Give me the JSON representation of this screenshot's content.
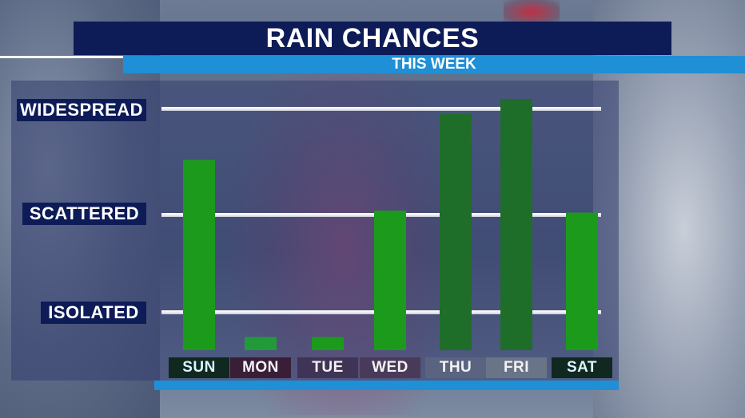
{
  "header": {
    "title": "RAIN CHANCES",
    "subtitle": "THIS WEEK"
  },
  "colors": {
    "title_bar": "#0d1b57",
    "subtitle_bar": "#1f8fd6",
    "bar_light_green": "#1c9a1c",
    "bar_dark_green": "#1e6e2a"
  },
  "chart_data": {
    "type": "bar",
    "categories": [
      "SUN",
      "MON",
      "TUE",
      "WED",
      "THU",
      "FRI",
      "SAT"
    ],
    "values": [
      2.5,
      0.35,
      0.35,
      2.0,
      2.95,
      3.1,
      1.98
    ],
    "bar_colors": [
      "#1c9a1c",
      "#239a3a",
      "#1c9a1c",
      "#1c9a1c",
      "#1e6e2a",
      "#1e6e2a",
      "#1c9a1c"
    ],
    "y_levels": [
      {
        "label": "ISOLATED",
        "value": 1
      },
      {
        "label": "SCATTERED",
        "value": 2
      },
      {
        "label": "WIDESPREAD",
        "value": 3
      }
    ],
    "ylim": [
      0,
      3
    ],
    "grid": true
  }
}
